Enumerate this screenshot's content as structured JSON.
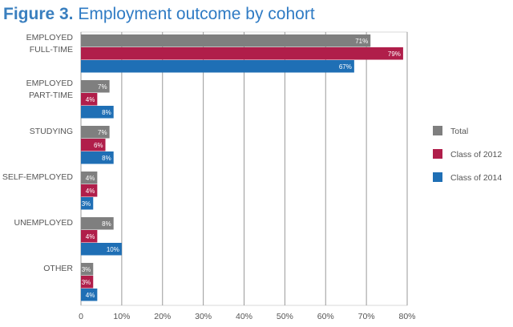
{
  "figure": {
    "prefix": "Figure 3.",
    "title": "Employment outcome by cohort"
  },
  "colors": {
    "Total": "#7f7f7f",
    "Class of 2012": "#b01e4a",
    "Class of 2014": "#1f6fb5",
    "grid": "#9a9a9a",
    "axis_text": "#555555",
    "title": "#2f7bc4"
  },
  "chart_data": {
    "type": "bar",
    "orientation": "horizontal",
    "categories": [
      [
        "EMPLOYED",
        "FULL-TIME"
      ],
      [
        "EMPLOYED",
        "PART-TIME"
      ],
      [
        "STUDYING"
      ],
      [
        "SELF-EMPLOYED"
      ],
      [
        "UNEMPLOYED"
      ],
      [
        "OTHER"
      ]
    ],
    "series": [
      {
        "name": "Total",
        "values": [
          71,
          7,
          7,
          4,
          8,
          3
        ],
        "labels": [
          "71%",
          "7%",
          "7%",
          "4%",
          "8%",
          "3%"
        ]
      },
      {
        "name": "Class of 2012",
        "values": [
          79,
          4,
          6,
          4,
          4,
          3
        ],
        "labels": [
          "79%",
          "4%",
          "6%",
          "4%",
          "4%",
          "3%"
        ]
      },
      {
        "name": "Class of 2014",
        "values": [
          67,
          8,
          8,
          3,
          10,
          4
        ],
        "labels": [
          "67%",
          "8%",
          "8%",
          "3%",
          "10%",
          "4%"
        ]
      }
    ],
    "xlim": [
      0,
      80
    ],
    "xticks": [
      0,
      10,
      20,
      30,
      40,
      50,
      60,
      70,
      80
    ],
    "xtick_labels": [
      "0",
      "10%",
      "20%",
      "30%",
      "40%",
      "50%",
      "60%",
      "70%",
      "80%"
    ],
    "grid": true,
    "legend": "right"
  }
}
